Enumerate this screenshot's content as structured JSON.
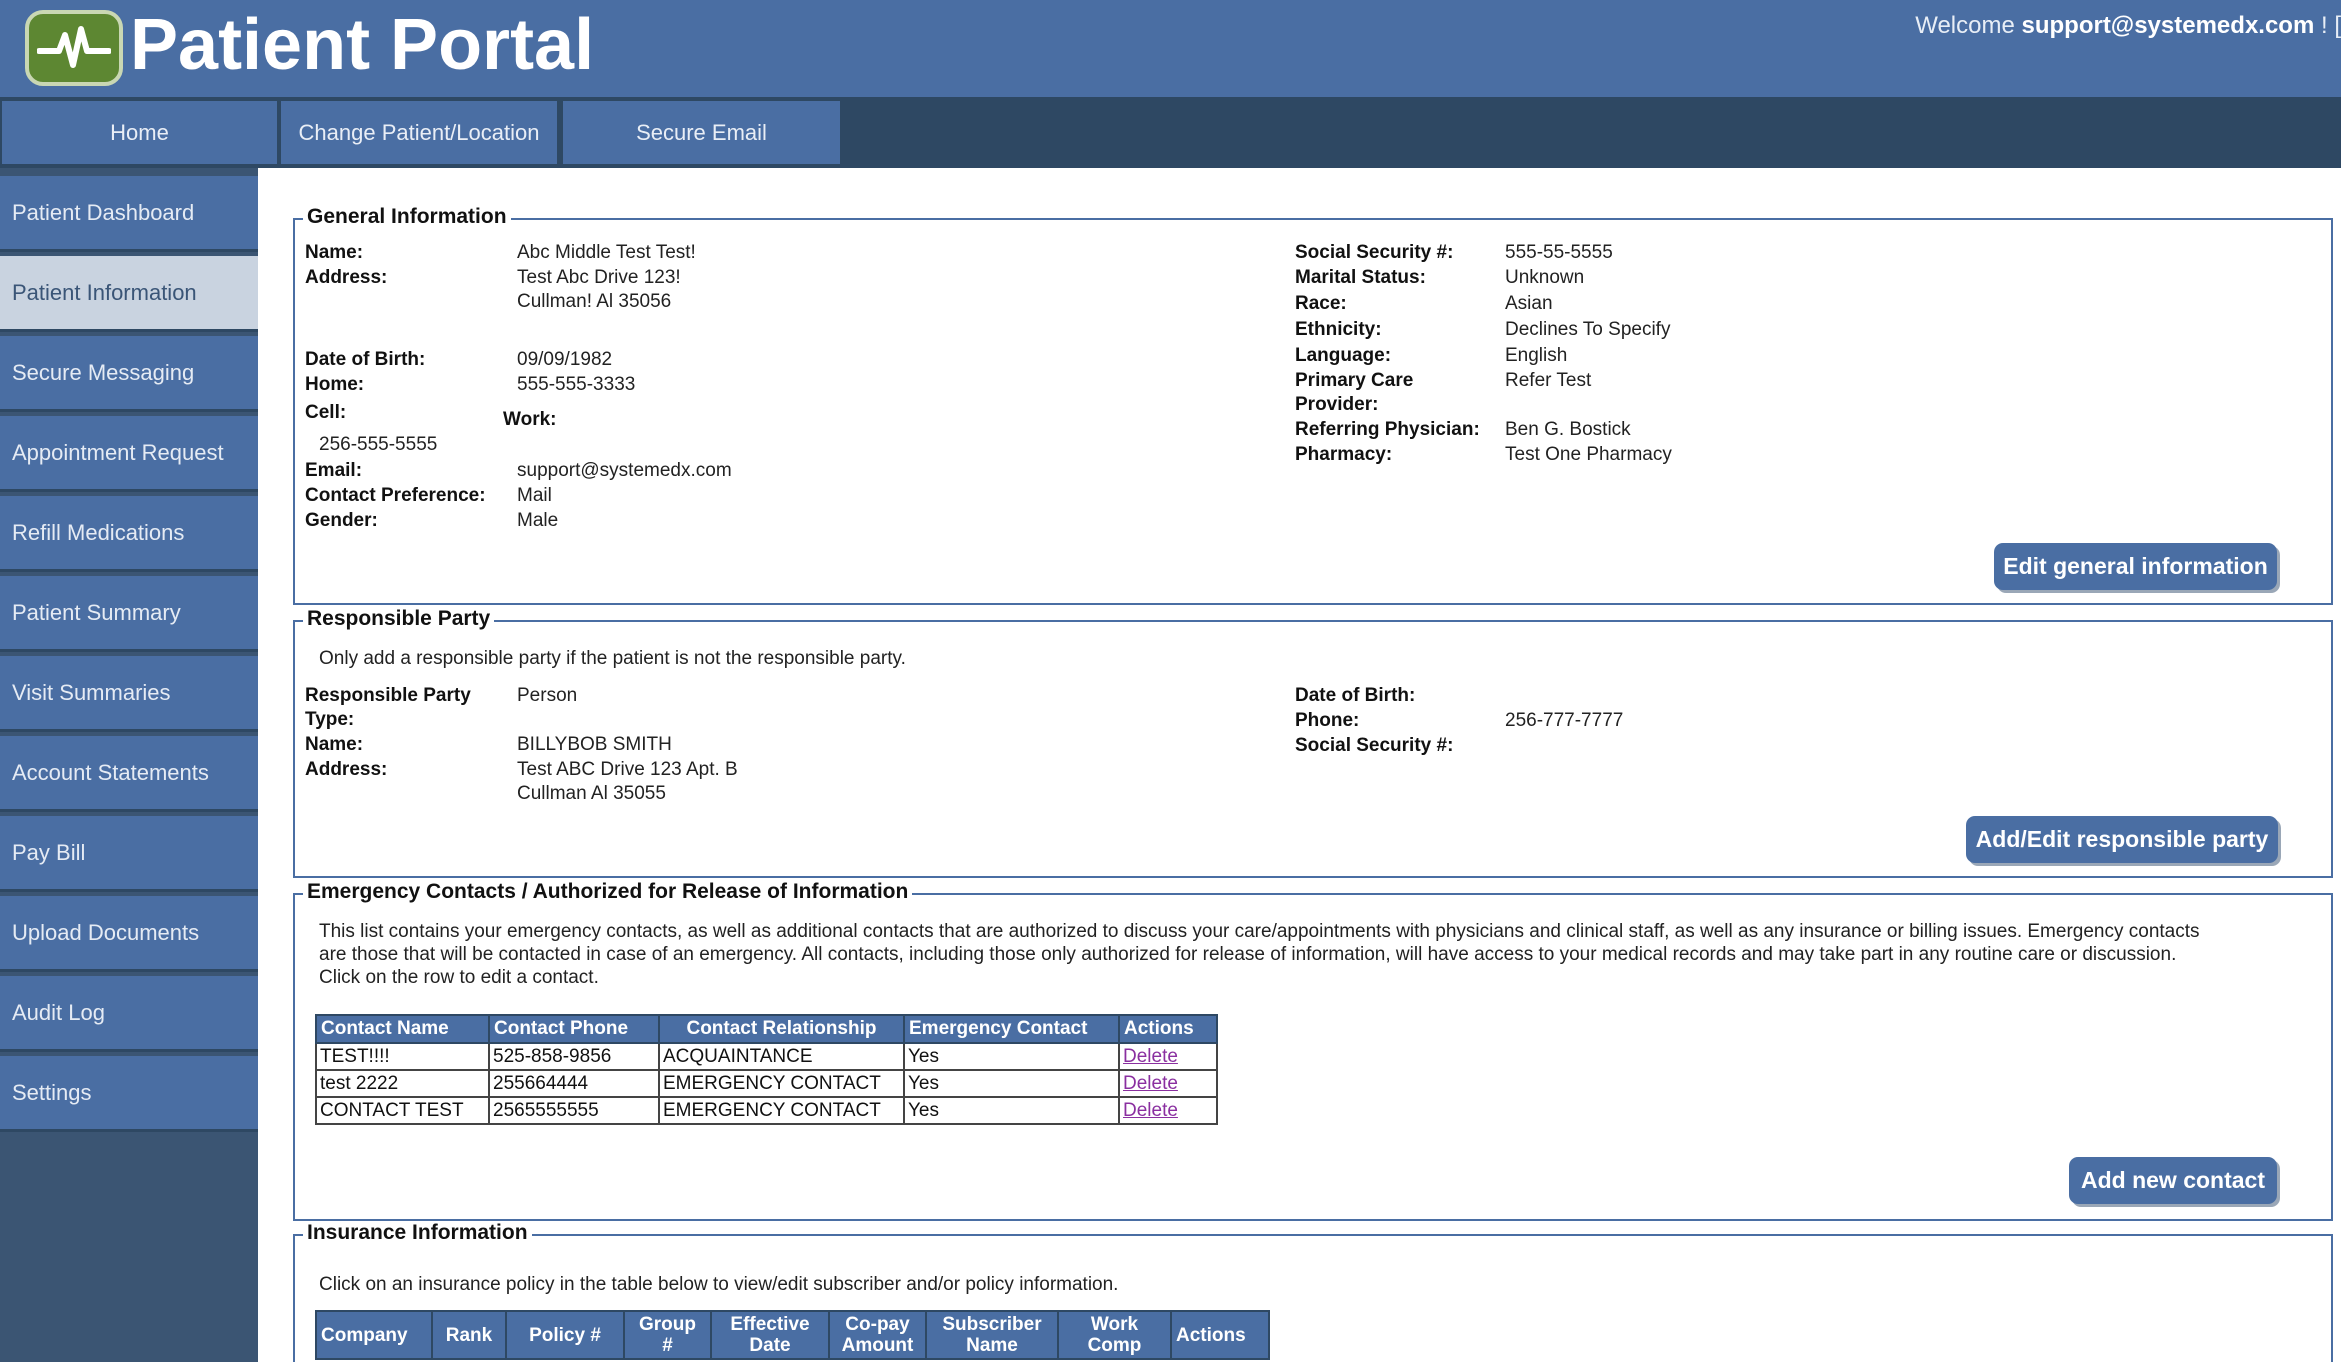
{
  "header": {
    "brand": "Patient Portal",
    "welcome_prefix": "Welcome",
    "welcome_user": "support@systemedx.com",
    "welcome_suffix": "! ["
  },
  "topnav": [
    "Home",
    "Change Patient/Location",
    "Secure Email"
  ],
  "sidebar": {
    "items": [
      "Patient Dashboard",
      "Patient Information",
      "Secure Messaging",
      "Appointment Request",
      "Refill Medications",
      "Patient Summary",
      "Visit Summaries",
      "Account Statements",
      "Pay Bill",
      "Upload Documents",
      "Audit Log",
      "Settings"
    ],
    "active": "Patient Information"
  },
  "general": {
    "legend": "General Information",
    "name_label": "Name:",
    "name": "Abc Middle Test Test!",
    "address_label": "Address:",
    "address1": "Test Abc Drive 123!",
    "address2": "Cullman! Al 35056",
    "dob_label": "Date of Birth:",
    "dob": "09/09/1982",
    "home_label": "Home:",
    "home": "555-555-3333",
    "cell_label": "Cell:",
    "cell": "256-555-5555",
    "work_label": "Work:",
    "email_label": "Email:",
    "email": "support@systemedx.com",
    "contact_pref_label": "Contact Preference:",
    "contact_pref": "Mail",
    "gender_label": "Gender:",
    "gender": "Male",
    "ssn_label": "Social Security #:",
    "ssn": "555-55-5555",
    "marital_label": "Marital Status:",
    "marital": "Unknown",
    "race_label": "Race:",
    "race": "Asian",
    "ethnicity_label": "Ethnicity:",
    "ethnicity": "Declines To Specify",
    "language_label": "Language:",
    "language": "English",
    "pcp_label1": "Primary Care",
    "pcp_label2": "Provider:",
    "pcp": "Refer Test",
    "referring_label": "Referring Physician:",
    "referring": "Ben G. Bostick",
    "pharmacy_label": "Pharmacy:",
    "pharmacy": "Test One Pharmacy",
    "edit_button": "Edit general information"
  },
  "responsible": {
    "legend": "Responsible Party",
    "note": "Only add a responsible party if the patient is not the responsible party.",
    "type_label1": "Responsible Party",
    "type_label2": "Type:",
    "type": "Person",
    "name_label": "Name:",
    "name": "BILLYBOB SMITH",
    "address_label": "Address:",
    "address1": "Test ABC Drive 123 Apt. B",
    "address2": "Cullman Al 35055",
    "dob_label": "Date of Birth:",
    "phone_label": "Phone:",
    "phone": "256-777-7777",
    "ssn_label": "Social Security #:",
    "button": "Add/Edit responsible party"
  },
  "emergency": {
    "legend": "Emergency Contacts / Authorized for Release of Information",
    "note_line1": "This list contains your emergency contacts, as well as additional contacts that are authorized to discuss your care/appointments with physicians and clinical staff, as well as any insurance or billing issues. Emergency contacts",
    "note_line2": "are those that will be contacted in case of an emergency. All contacts, including those only authorized for release of information, will have access to your medical records and may take part in any routine care or discussion.",
    "note_line3": "Click on the row to edit a contact.",
    "columns": [
      "Contact Name",
      "Contact Phone",
      "Contact Relationship",
      "Emergency Contact",
      "Actions"
    ],
    "rows": [
      {
        "name": "TEST!!!!",
        "phone": "525-858-9856",
        "relationship": "ACQUAINTANCE",
        "emergency": "Yes",
        "action": "Delete"
      },
      {
        "name": "test 2222",
        "phone": "255664444",
        "relationship": "EMERGENCY CONTACT",
        "emergency": "Yes",
        "action": "Delete"
      },
      {
        "name": "CONTACT TEST",
        "phone": "2565555555",
        "relationship": "EMERGENCY CONTACT",
        "emergency": "Yes",
        "action": "Delete"
      }
    ],
    "button": "Add new contact"
  },
  "insurance": {
    "legend": "Insurance Information",
    "note": "Click on an insurance policy in the table below to view/edit subscriber and/or policy information.",
    "columns": [
      {
        "l1": "Company",
        "l2": ""
      },
      {
        "l1": "Rank",
        "l2": ""
      },
      {
        "l1": "Policy #",
        "l2": ""
      },
      {
        "l1": "Group",
        "l2": "#"
      },
      {
        "l1": "Effective",
        "l2": "Date"
      },
      {
        "l1": "Co-pay",
        "l2": "Amount"
      },
      {
        "l1": "Subscriber",
        "l2": "Name"
      },
      {
        "l1": "Work",
        "l2": "Comp"
      },
      {
        "l1": "Actions",
        "l2": ""
      }
    ]
  },
  "colors": {
    "header": "#4a6ea3",
    "nav_dark": "#2e4863",
    "sidebar_active": "#c9d3e0",
    "link": "#8a2fa0"
  },
  "icons": {
    "logo": "heartbeat-icon"
  }
}
